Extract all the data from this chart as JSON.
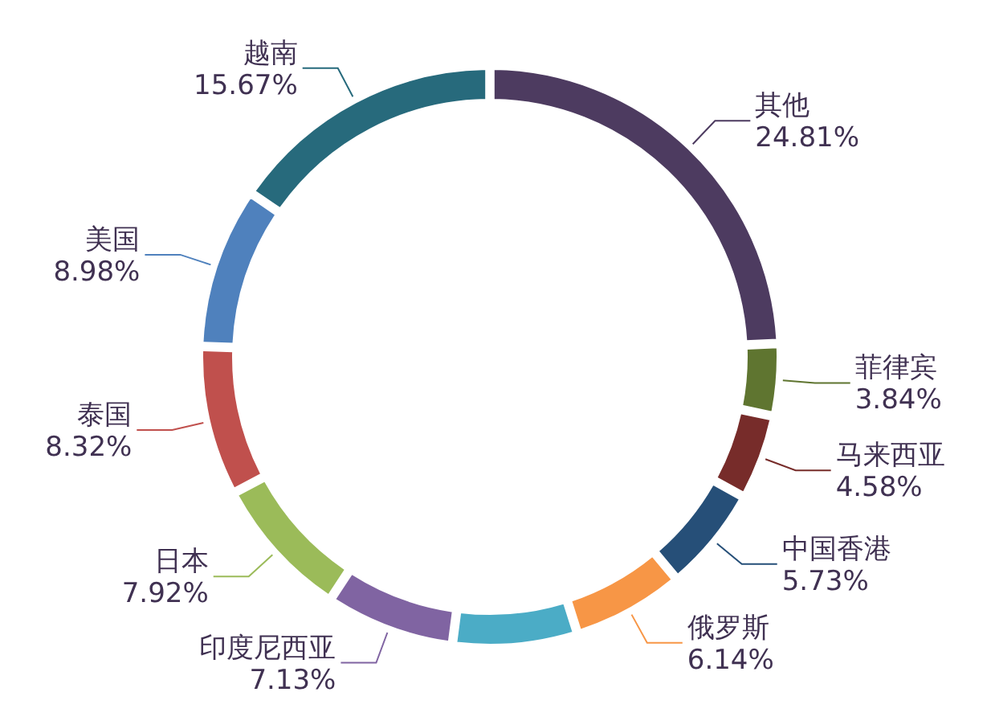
{
  "chart_data": {
    "type": "donut",
    "categories": [
      "其他",
      "菲律宾",
      "马来西亚",
      "中国香港",
      "俄罗斯",
      null,
      "印度尼西亚",
      "日本",
      "泰国",
      "美国",
      "越南"
    ],
    "values": [
      24.81,
      3.84,
      4.58,
      5.73,
      6.14,
      6.88,
      7.13,
      7.92,
      8.32,
      8.98,
      15.67
    ],
    "value_labels": [
      "24.81%",
      "3.84%",
      "4.58%",
      "5.73%",
      "6.14%",
      null,
      "7.13%",
      "7.92%",
      "8.32%",
      "8.98%",
      "15.67%"
    ],
    "colors": [
      "#4d3b60",
      "#5f7530",
      "#772c2a",
      "#264f78",
      "#f79646",
      "#4bacc6",
      "#8064a2",
      "#9bbb59",
      "#c0504d",
      "#4f81bd",
      "#276a7c"
    ]
  }
}
